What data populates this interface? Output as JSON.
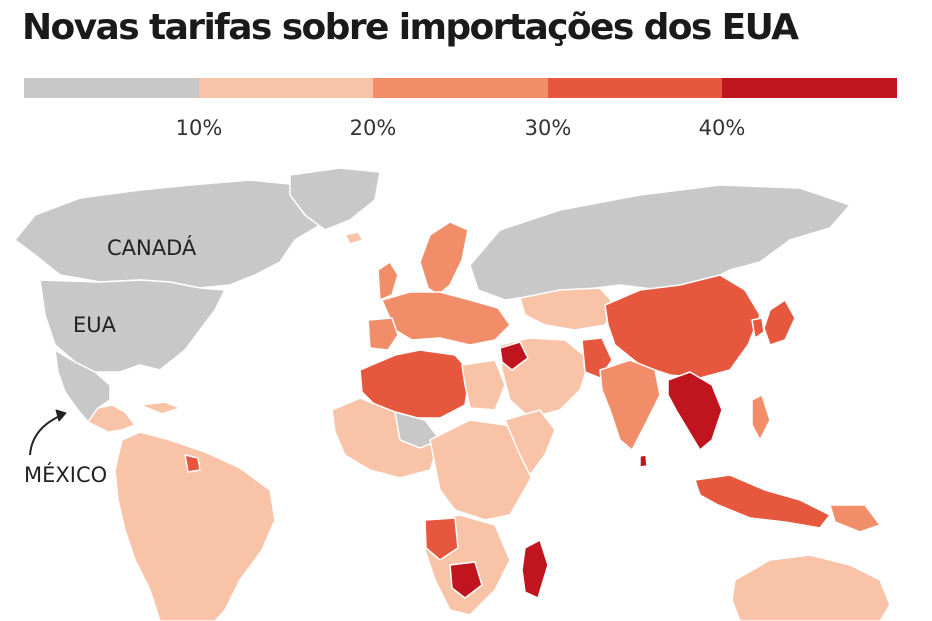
{
  "title": "Novas tarifas sobre importações dos EUA",
  "legend": {
    "segments": [
      "#c8c8c8",
      "#f9c3a8",
      "#f28d6a",
      "#e5583d",
      "#c0141f"
    ],
    "ticks": [
      "10%",
      "20%",
      "30%",
      "40%"
    ]
  },
  "map": {
    "labels": {
      "canada": "CANADÁ",
      "usa": "EUA",
      "mexico": "MÉXICO"
    }
  }
}
